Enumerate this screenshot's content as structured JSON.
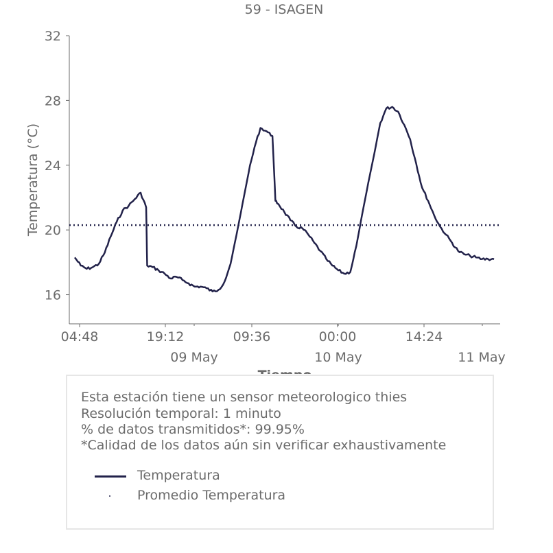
{
  "chart_data": {
    "type": "line",
    "title": "59 - ISAGEN",
    "xlabel": "Tiempo",
    "ylabel": "Temperatura (°C)",
    "ylim": [
      14.2,
      32
    ],
    "yticks": [
      16,
      20,
      24,
      28,
      32
    ],
    "xticks_time": [
      "04:48",
      "19:12",
      "09:36",
      "00:00",
      "14:24"
    ],
    "xticks_date": [
      "09 May",
      "10 May",
      "11 May"
    ],
    "grid": false,
    "colors": {
      "series": "#22224a",
      "text": "#6b6b6b"
    },
    "series": [
      {
        "name": "Temperatura",
        "style": "solid",
        "x": [
          "2023-05-08 04:00",
          "2023-05-08 05:00",
          "2023-05-08 06:00",
          "2023-05-08 07:00",
          "2023-05-08 08:00",
          "2023-05-08 09:00",
          "2023-05-08 10:00",
          "2023-05-08 11:00",
          "2023-05-08 12:00",
          "2023-05-08 13:00",
          "2023-05-08 14:00",
          "2023-05-08 15:00",
          "2023-05-08 15:55",
          "2023-05-08 16:05",
          "2023-05-08 17:00",
          "2023-05-08 18:00",
          "2023-05-08 19:00",
          "2023-05-08 20:00",
          "2023-05-08 21:00",
          "2023-05-08 22:00",
          "2023-05-08 23:00",
          "2023-05-09 00:00",
          "2023-05-09 01:00",
          "2023-05-09 02:00",
          "2023-05-09 03:00",
          "2023-05-09 04:00",
          "2023-05-09 05:00",
          "2023-05-09 06:00",
          "2023-05-09 07:00",
          "2023-05-09 08:00",
          "2023-05-09 09:00",
          "2023-05-09 10:00",
          "2023-05-09 11:00",
          "2023-05-09 12:00",
          "2023-05-09 13:00",
          "2023-05-09 13:30",
          "2023-05-09 14:00",
          "2023-05-09 15:00",
          "2023-05-09 16:00",
          "2023-05-09 17:00",
          "2023-05-09 18:00",
          "2023-05-09 19:00",
          "2023-05-09 20:00",
          "2023-05-09 21:00",
          "2023-05-09 22:00",
          "2023-05-09 23:00",
          "2023-05-10 00:00",
          "2023-05-10 01:00",
          "2023-05-10 02:00",
          "2023-05-10 03:00",
          "2023-05-10 04:00",
          "2023-05-10 05:00",
          "2023-05-10 06:00",
          "2023-05-10 07:00",
          "2023-05-10 08:00",
          "2023-05-10 09:00",
          "2023-05-10 10:00",
          "2023-05-10 11:00",
          "2023-05-10 12:00",
          "2023-05-10 13:00",
          "2023-05-10 14:00",
          "2023-05-10 15:00",
          "2023-05-10 16:00",
          "2023-05-10 17:00",
          "2023-05-10 18:00",
          "2023-05-10 19:00",
          "2023-05-10 20:00",
          "2023-05-10 21:00",
          "2023-05-10 22:00",
          "2023-05-10 23:00",
          "2023-05-11 00:00",
          "2023-05-11 01:00",
          "2023-05-11 02:00"
        ],
        "values": [
          18.3,
          17.8,
          17.6,
          17.7,
          17.9,
          18.6,
          19.6,
          20.5,
          21.2,
          21.5,
          21.9,
          22.3,
          21.4,
          17.8,
          17.7,
          17.5,
          17.3,
          17.0,
          17.1,
          16.9,
          16.7,
          16.5,
          16.5,
          16.4,
          16.2,
          16.3,
          16.8,
          17.9,
          19.7,
          21.6,
          23.5,
          25.1,
          26.3,
          26.1,
          25.8,
          21.8,
          21.6,
          21.1,
          20.6,
          20.2,
          20.1,
          19.7,
          19.2,
          18.7,
          18.2,
          17.8,
          17.5,
          17.3,
          17.4,
          19.0,
          21.0,
          22.9,
          24.7,
          26.6,
          27.5,
          27.6,
          27.3,
          26.5,
          25.6,
          24.1,
          22.6,
          21.8,
          20.9,
          20.2,
          19.7,
          19.2,
          18.7,
          18.5,
          18.4,
          18.3,
          18.2,
          18.2,
          18.2
        ]
      },
      {
        "name": "Promedio Temperatura",
        "style": "dotted",
        "value": 20.3
      }
    ]
  },
  "info": {
    "line1": "Esta estación tiene un sensor meteorologico thies",
    "line2": "Resolución temporal: 1 minuto",
    "line3": "% de datos transmitidos*: 99.95%",
    "line4": "*Calidad de los datos aún sin verificar exhaustivamente"
  },
  "legend": {
    "items": [
      {
        "label": "Temperatura",
        "icon": "solid-line"
      },
      {
        "label": "Promedio Temperatura",
        "icon": "dot"
      }
    ]
  }
}
